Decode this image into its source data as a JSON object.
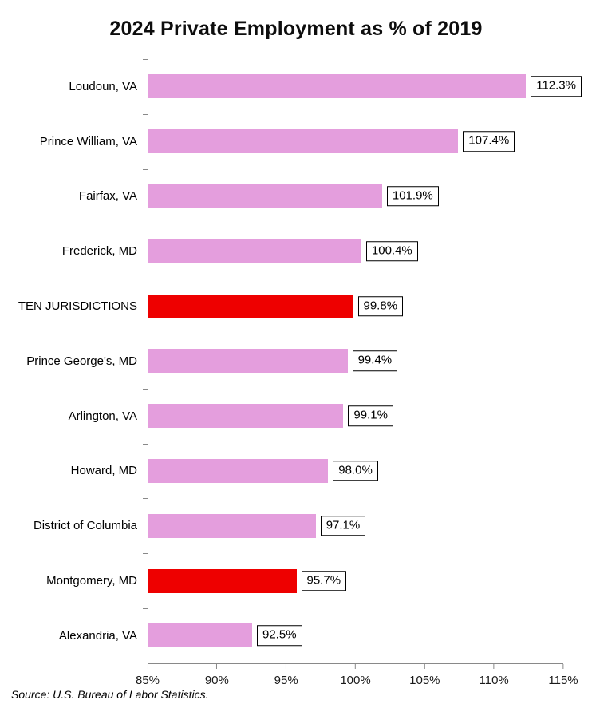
{
  "title": "2024 Private Employment as % of 2019",
  "source_note": "Source: U.S. Bureau of Labor Statistics.",
  "chart_data": {
    "type": "bar",
    "orientation": "horizontal",
    "title": "2024 Private Employment as % of 2019",
    "categories": [
      "Loudoun, VA",
      "Prince William, VA",
      "Fairfax, VA",
      "Frederick, MD",
      "TEN JURISDICTIONS",
      "Prince George's, MD",
      "Arlington, VA",
      "Howard, MD",
      "District of Columbia",
      "Montgomery, MD",
      "Alexandria, VA"
    ],
    "values": [
      112.3,
      107.4,
      101.9,
      100.4,
      99.8,
      99.4,
      99.1,
      98.0,
      97.1,
      95.7,
      92.5
    ],
    "value_labels": [
      "112.3%",
      "107.4%",
      "101.9%",
      "100.4%",
      "99.8%",
      "99.4%",
      "99.1%",
      "98.0%",
      "97.1%",
      "95.7%",
      "92.5%"
    ],
    "highlight_flags": [
      false,
      false,
      false,
      false,
      true,
      false,
      false,
      false,
      false,
      true,
      false
    ],
    "highlighted_categories": [
      "TEN JURISDICTIONS",
      "Montgomery, MD"
    ],
    "xlim": [
      85,
      115
    ],
    "x_ticks": [
      "85%",
      "90%",
      "95%",
      "100%",
      "105%",
      "110%",
      "115%"
    ],
    "grid": "off",
    "legend": "none",
    "data_label_style": "boxed",
    "colors": {
      "bar": "#E49EDD",
      "highlight": "#EE0000",
      "axis": "#898989",
      "label_box_border": "#000000",
      "label_box_fill": "#FFFFFF"
    }
  }
}
